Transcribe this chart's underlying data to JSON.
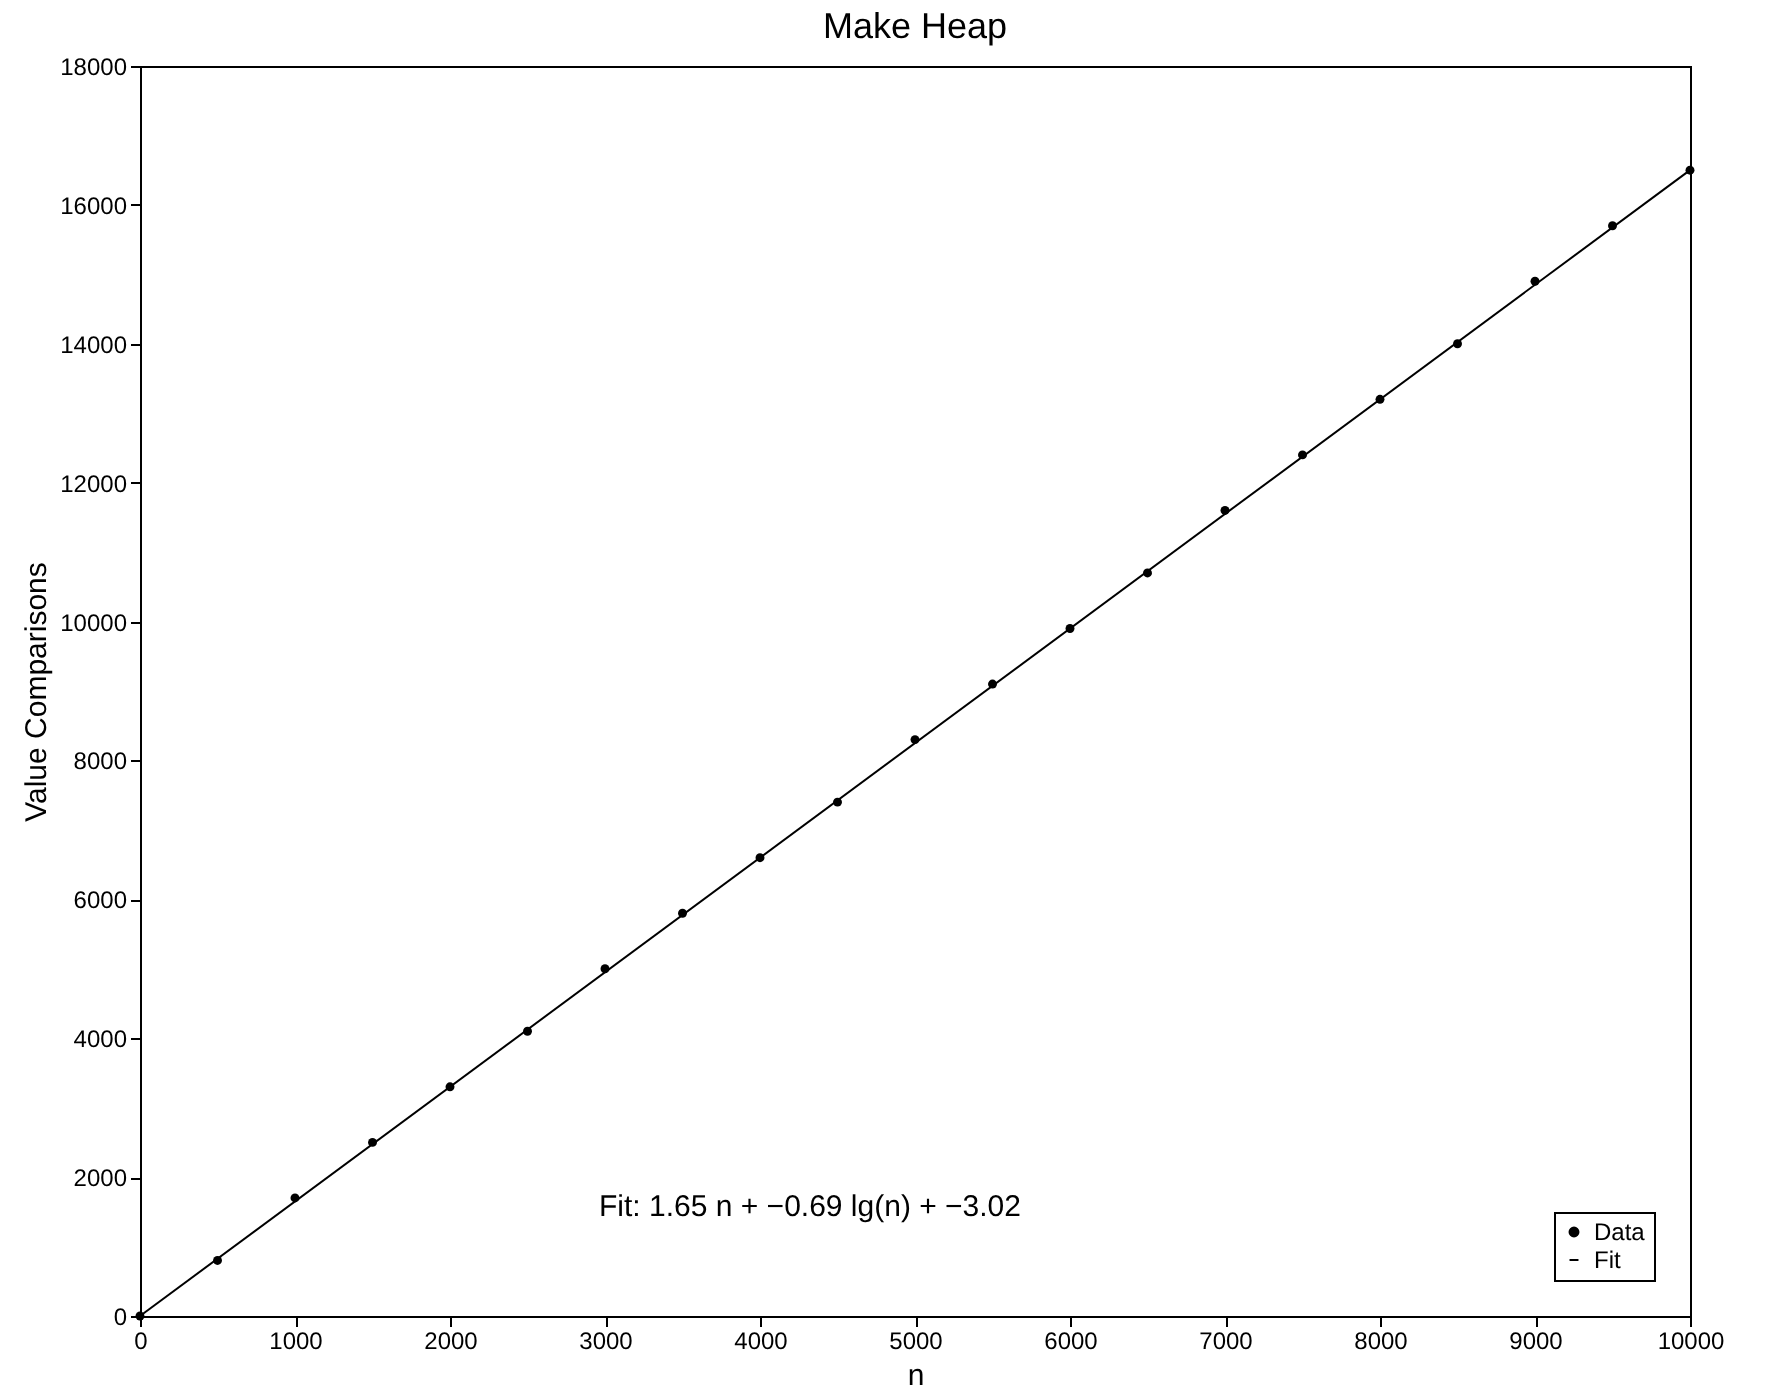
{
  "chart_data": {
    "type": "scatter",
    "title": "Make Heap",
    "xlabel": "n",
    "ylabel": "Value Comparisons",
    "xlim": [
      0,
      10000
    ],
    "ylim": [
      0,
      18000
    ],
    "xticks": [
      0,
      1000,
      2000,
      3000,
      4000,
      5000,
      6000,
      7000,
      8000,
      9000,
      10000
    ],
    "yticks": [
      0,
      2000,
      4000,
      6000,
      8000,
      10000,
      12000,
      14000,
      16000,
      18000
    ],
    "series": [
      {
        "name": "Data",
        "color": "#000000",
        "marker": "circle",
        "x": [
          0,
          500,
          1000,
          1500,
          2000,
          2500,
          3000,
          3500,
          4000,
          4500,
          5000,
          5500,
          6000,
          6500,
          7000,
          7500,
          8000,
          8500,
          9000,
          9500,
          10000
        ],
        "values": [
          0,
          800,
          1700,
          2500,
          3300,
          4100,
          5000,
          5800,
          6600,
          7400,
          8300,
          9100,
          9900,
          10700,
          11600,
          12400,
          13200,
          14000,
          14900,
          15700,
          16500
        ]
      },
      {
        "name": "Fit",
        "type": "line",
        "color": "#000000",
        "line_style": "solid",
        "x": [
          0,
          10000
        ],
        "values": [
          0,
          16500
        ]
      }
    ],
    "grid": false,
    "legend": "bottom right",
    "annotations": [
      "Fit: 1.65 n + −0.69 lg(n) + −3.02"
    ]
  }
}
